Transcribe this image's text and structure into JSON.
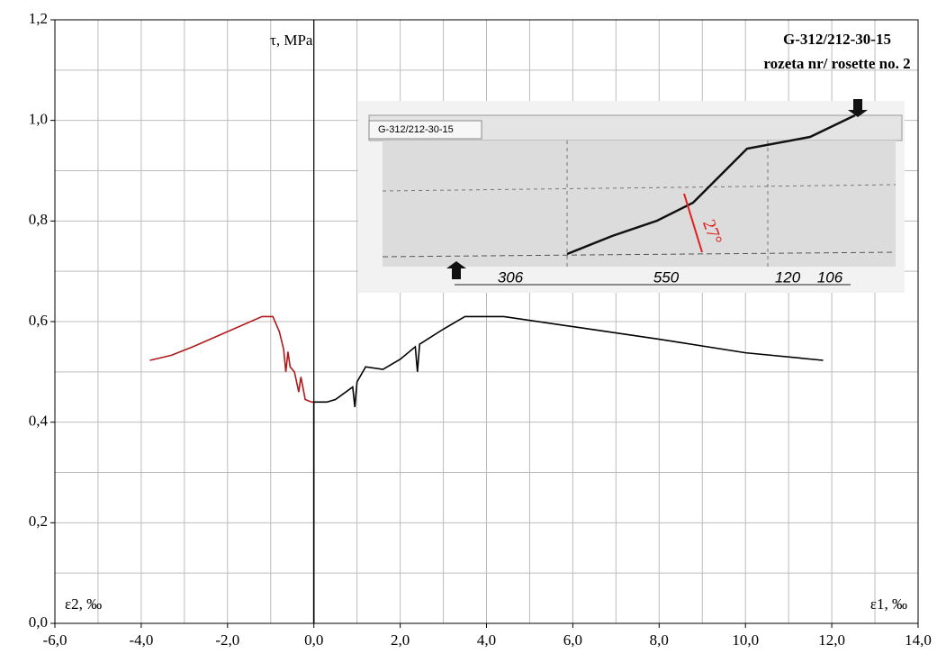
{
  "chart_data": {
    "type": "line",
    "title": "G-312/212-30-15",
    "subtitle": "rozeta nr/ rosette no. 2",
    "y_label": "τ, MPa",
    "x_label_left": "ε2, ‰",
    "x_label_right": "ε1, ‰",
    "xlim": [
      -6,
      14
    ],
    "ylim": [
      0,
      1.2
    ],
    "xticks": [
      {
        "value": -6,
        "label": "-6,0"
      },
      {
        "value": -4,
        "label": "-4,0"
      },
      {
        "value": -2,
        "label": "-2,0"
      },
      {
        "value": 0,
        "label": "0,0"
      },
      {
        "value": 2,
        "label": "2,0"
      },
      {
        "value": 4,
        "label": "4,0"
      },
      {
        "value": 6,
        "label": "6,0"
      },
      {
        "value": 8,
        "label": "8,0"
      },
      {
        "value": 10,
        "label": "10,0"
      },
      {
        "value": 12,
        "label": "12,0"
      },
      {
        "value": 14,
        "label": "14,0"
      }
    ],
    "yticks": [
      {
        "value": 0,
        "label": "0,0"
      },
      {
        "value": 0.2,
        "label": "0,2"
      },
      {
        "value": 0.4,
        "label": "0,4"
      },
      {
        "value": 0.6,
        "label": "0,6"
      },
      {
        "value": 0.8,
        "label": "0,8"
      },
      {
        "value": 1.0,
        "label": "1,0"
      },
      {
        "value": 1.2,
        "label": "1,2"
      }
    ],
    "grid": true,
    "series": [
      {
        "color": "#b01a1a",
        "x": [
          -3.8,
          -3.3,
          -2.8,
          -2.0,
          -1.2,
          -0.95,
          -0.8,
          -0.7,
          -0.65,
          -0.6,
          -0.55,
          -0.45,
          -0.35,
          -0.3,
          -0.2,
          -0.05,
          0,
          0
        ],
        "values": [
          0.523,
          0.533,
          0.55,
          0.58,
          0.61,
          0.61,
          0.58,
          0.545,
          0.5,
          0.54,
          0.51,
          0.5,
          0.46,
          0.49,
          0.445,
          0.44,
          0.44,
          0
        ]
      },
      {
        "color": "#000000",
        "x": [
          0,
          0,
          0.3,
          0.5,
          0.9,
          0.95,
          1.0,
          1.2,
          1.6,
          2.0,
          2.35,
          2.4,
          2.45,
          3.0,
          3.5,
          4.4,
          6.0,
          8.0,
          10.0,
          11.8
        ],
        "values": [
          0,
          0.44,
          0.44,
          0.445,
          0.47,
          0.43,
          0.48,
          0.51,
          0.505,
          0.525,
          0.55,
          0.5,
          0.555,
          0.585,
          0.61,
          0.61,
          0.59,
          0.565,
          0.538,
          0.523
        ]
      }
    ],
    "inset": {
      "label": "G-312/212-30-15",
      "dimensions": [
        "306",
        "550",
        "120",
        "106"
      ],
      "angle": "27°"
    }
  }
}
